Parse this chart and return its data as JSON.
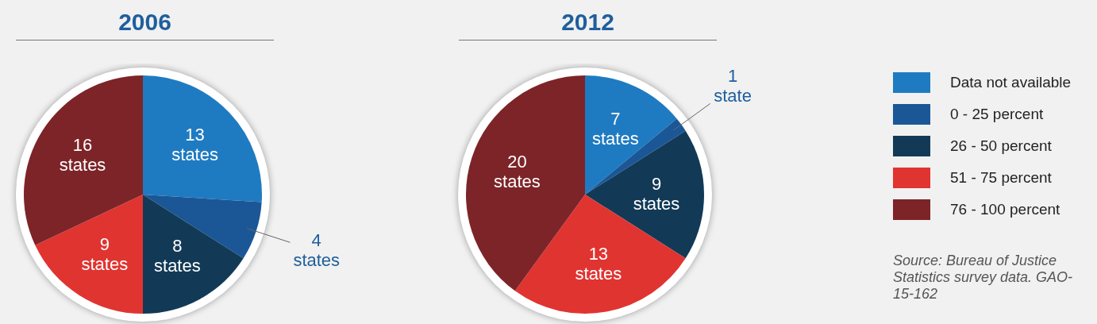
{
  "chart_data": [
    {
      "type": "pie",
      "title": "2006",
      "categories": [
        "Data not available",
        "0 - 25 percent",
        "26 - 50 percent",
        "51 - 75 percent",
        "76 - 100 percent"
      ],
      "values": [
        13,
        4,
        8,
        9,
        16
      ],
      "value_labels": [
        "13 states",
        "4 states",
        "8 states",
        "9 states",
        "16 states"
      ],
      "colors": [
        "#1f7bc1",
        "#1b5797",
        "#123a57",
        "#e03431",
        "#7d2428"
      ],
      "legend": "right"
    },
    {
      "type": "pie",
      "title": "2012",
      "categories": [
        null,
        null,
        null,
        null,
        null
      ],
      "values": [
        7,
        1,
        9,
        13,
        20
      ],
      "value_labels": [
        "7 states",
        "1 state",
        "9 states",
        "13 states",
        "20 states"
      ],
      "colors": [
        "#1f7bc1",
        "#1b5797",
        "#123a57",
        "#e03431",
        "#7d2428"
      ],
      "annotations": [
        "Source: Bureau of Justice Statistics survey data. GAO-15-162"
      ]
    }
  ]
}
